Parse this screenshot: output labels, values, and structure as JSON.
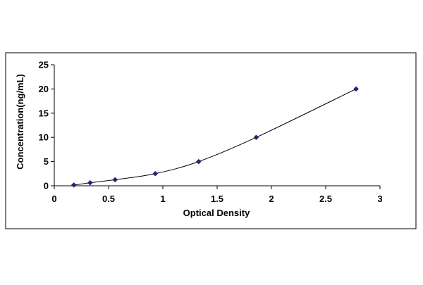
{
  "chart_data": {
    "type": "scatter",
    "title": "",
    "xlabel": "Optical Density",
    "ylabel": "Concentration(ng/mL)",
    "xlim": [
      0,
      3
    ],
    "ylim": [
      0,
      25
    ],
    "xticks": [
      0,
      0.5,
      1,
      1.5,
      2,
      2.5,
      3
    ],
    "xtick_labels": [
      "0",
      "0.5",
      "1",
      "1.5",
      "2",
      "2.5",
      "3"
    ],
    "yticks": [
      0,
      5,
      10,
      15,
      20,
      25
    ],
    "ytick_labels": [
      "0",
      "5",
      "10",
      "15",
      "20",
      "25"
    ],
    "grid": false,
    "legend": false,
    "trendline": "smooth curve through points",
    "marker": "diamond",
    "colors": {
      "marker": "#1a237e",
      "line": "#000000",
      "frame": "#000000"
    },
    "series": [
      {
        "x": [
          0.18,
          0.33,
          0.56,
          0.93,
          1.33,
          1.86,
          2.78
        ],
        "y": [
          0.156,
          0.625,
          1.25,
          2.5,
          5,
          10,
          20
        ]
      }
    ]
  }
}
